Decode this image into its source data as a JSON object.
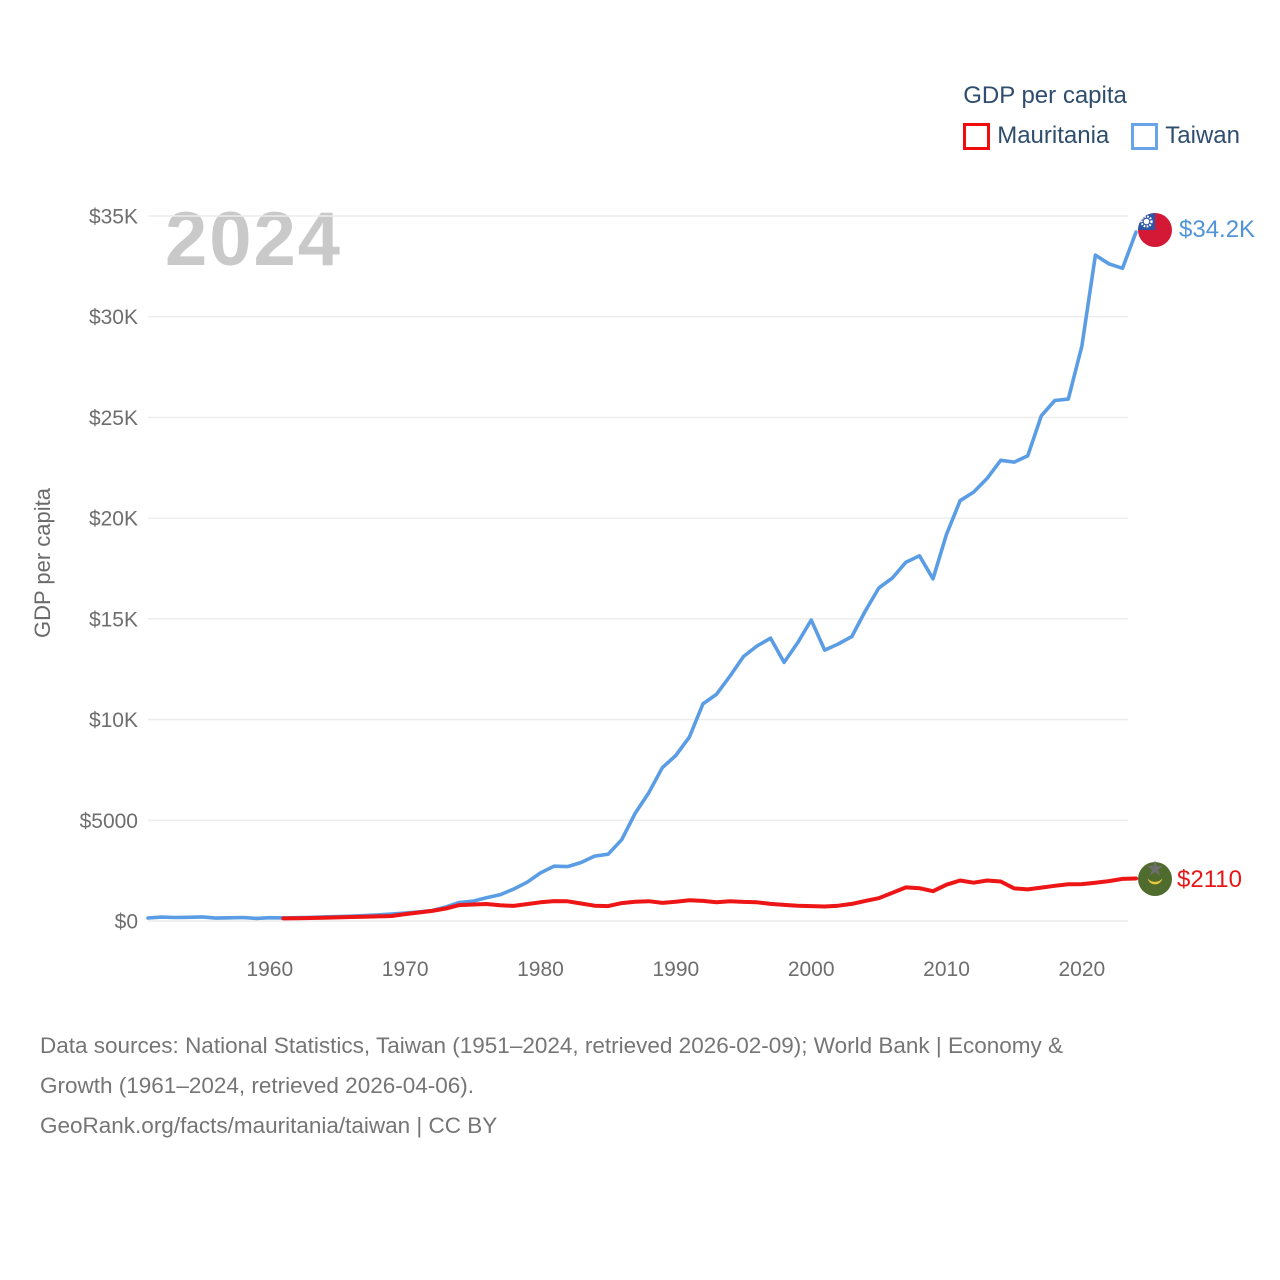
{
  "watermark": "2024",
  "legend": {
    "title": "GDP per capita",
    "items": [
      {
        "label": "Mauritania",
        "color": "#ed1515"
      },
      {
        "label": "Taiwan",
        "color": "#5b9de4"
      }
    ]
  },
  "y_axis": {
    "title": "GDP per capita"
  },
  "end_labels": {
    "taiwan": "$34.2K",
    "mauritania": "$2110"
  },
  "footer": {
    "lines": [
      "Data sources: National Statistics, Taiwan (1951–2024, retrieved 2026-02-09); World Bank | Economy &",
      "Growth (1961–2024, retrieved 2026-04-06).",
      "GeoRank.org/facts/mauritania/taiwan | CC BY"
    ]
  },
  "chart_data": {
    "type": "line",
    "title": "GDP per capita",
    "ylabel": "GDP per capita",
    "x_range": [
      1951,
      2024
    ],
    "y_range": [
      0,
      35000
    ],
    "grid": true,
    "legend_position": "top-right",
    "x_ticks": [
      1960,
      1970,
      1980,
      1990,
      2000,
      2010,
      2020
    ],
    "y_ticks": [
      {
        "value": 0,
        "label": "$0"
      },
      {
        "value": 5000,
        "label": "$5000"
      },
      {
        "value": 10000,
        "label": "$10K"
      },
      {
        "value": 15000,
        "label": "$15K"
      },
      {
        "value": 20000,
        "label": "$20K"
      },
      {
        "value": 25000,
        "label": "$25K"
      },
      {
        "value": 30000,
        "label": "$30K"
      },
      {
        "value": 35000,
        "label": "$35K"
      }
    ],
    "series": [
      {
        "name": "Taiwan",
        "color": "#5b9de4",
        "stroke_width": 3.6,
        "start_year": 1951,
        "end_value_label": "$34.2K",
        "values": [
          151,
          196,
          176,
          182,
          203,
          143,
          160,
          173,
          131,
          163,
          152,
          162,
          178,
          202,
          217,
          237,
          267,
          304,
          345,
          397,
          450,
          522,
          695,
          920,
          985,
          1158,
          1301,
          1577,
          1920,
          2389,
          2720,
          2699,
          2903,
          3224,
          3314,
          4036,
          5350,
          6370,
          7613,
          8216,
          9136,
          10778,
          11250,
          12160,
          13129,
          13650,
          14040,
          12840,
          13804,
          14941,
          13448,
          13750,
          14120,
          15388,
          16532,
          17026,
          17814,
          18131,
          16988,
          19197,
          20866,
          21295,
          21973,
          22874,
          22780,
          23091,
          25080,
          25838,
          25908,
          28549,
          33059,
          32625,
          32404,
          34200
        ]
      },
      {
        "name": "Mauritania",
        "color": "#ed1515",
        "stroke_width": 4,
        "start_year": 1961,
        "end_value_label": "$2110",
        "values": [
          130,
          140,
          150,
          165,
          180,
          200,
          215,
          230,
          250,
          345,
          420,
          500,
          620,
          790,
          820,
          845,
          780,
          750,
          840,
          930,
          990,
          980,
          870,
          760,
          740,
          890,
          960,
          985,
          900,
          960,
          1030,
          1000,
          930,
          985,
          950,
          930,
          850,
          800,
          760,
          740,
          720,
          760,
          850,
          1000,
          1130,
          1400,
          1670,
          1630,
          1480,
          1800,
          2010,
          1900,
          2010,
          1960,
          1620,
          1570,
          1660,
          1750,
          1820,
          1830,
          1900,
          1980,
          2090,
          2110
        ]
      }
    ]
  }
}
